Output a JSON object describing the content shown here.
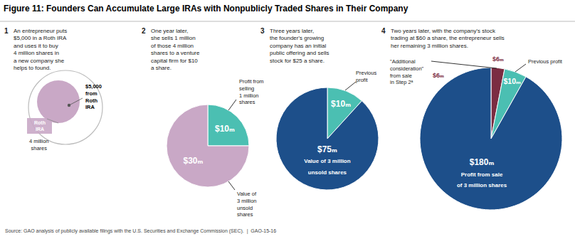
{
  "chart_data": [
    {
      "type": "text",
      "title": "Figure 11: Founders Can Accumulate Large IRAs with Nonpublicly Traded Shares in Their Company",
      "subtitle": "An entrepreneur puts\n$5,000 in a Roth IRA\nand uses it to buy\n4 million shares in\na new company she\nhelps to found.",
      "color": "#c9a8c6",
      "annotations": [
        "1",
        "$5,000\nfrom\nRoth\nIRA",
        "Roth\nIRA",
        "4 million\nshares",
        "Source: GAO analysis of publicly available filings with the U.S. Securities and Exchange Commission (SEC).  |  GAO-15-16"
      ]
    },
    {
      "type": "pie",
      "subtitle": "One year later,\nshe sells 1 million\nof those 4 million\nshares to a venture\ncapital firm for $10\na share.",
      "values": [
        10,
        30
      ],
      "value_labels": [
        "$10ₘ",
        "$30ₘ"
      ],
      "colors": [
        "#4bbfb2",
        "#c9a8c6"
      ],
      "data_labels": true,
      "annotations": [
        "2",
        "Profit from\nselling\n1 million\nshares",
        "Value of\n3 million\nunsold\nshares"
      ]
    },
    {
      "type": "pie",
      "subtitle": "Three years later,\nthe founder's growing\ncompany has an initial\npublic offering and sells\nstock for $25 a share.",
      "values": [
        10,
        75
      ],
      "value_labels": [
        "$10ₘ",
        "$75ₘ"
      ],
      "colors": [
        "#4bbfb2",
        "#1d4f8a"
      ],
      "data_labels": true,
      "annotations": [
        "3",
        "Previous\nprofit",
        "Value of 3 million\nunsold shares"
      ]
    },
    {
      "type": "pie",
      "subtitle": "Two years later, with the company's stock\ntrading at $60 a share, the entrepreneur sells\nher remaining 3 million shares.",
      "values": [
        6,
        10,
        180
      ],
      "value_labels": [
        "$6ₘ",
        "$10ₘ",
        "$180ₘ"
      ],
      "colors": [
        "#7b2d42",
        "#4bbfb2",
        "#1d4f8a"
      ],
      "data_labels": true,
      "annotations": [
        "4",
        "\"Additional\nconsideration\"\nfrom sale\nin Step 2ᵃ",
        "$6ₘ",
        "Previous profit",
        "Profit from sale\nof 3 million shares"
      ]
    }
  ]
}
